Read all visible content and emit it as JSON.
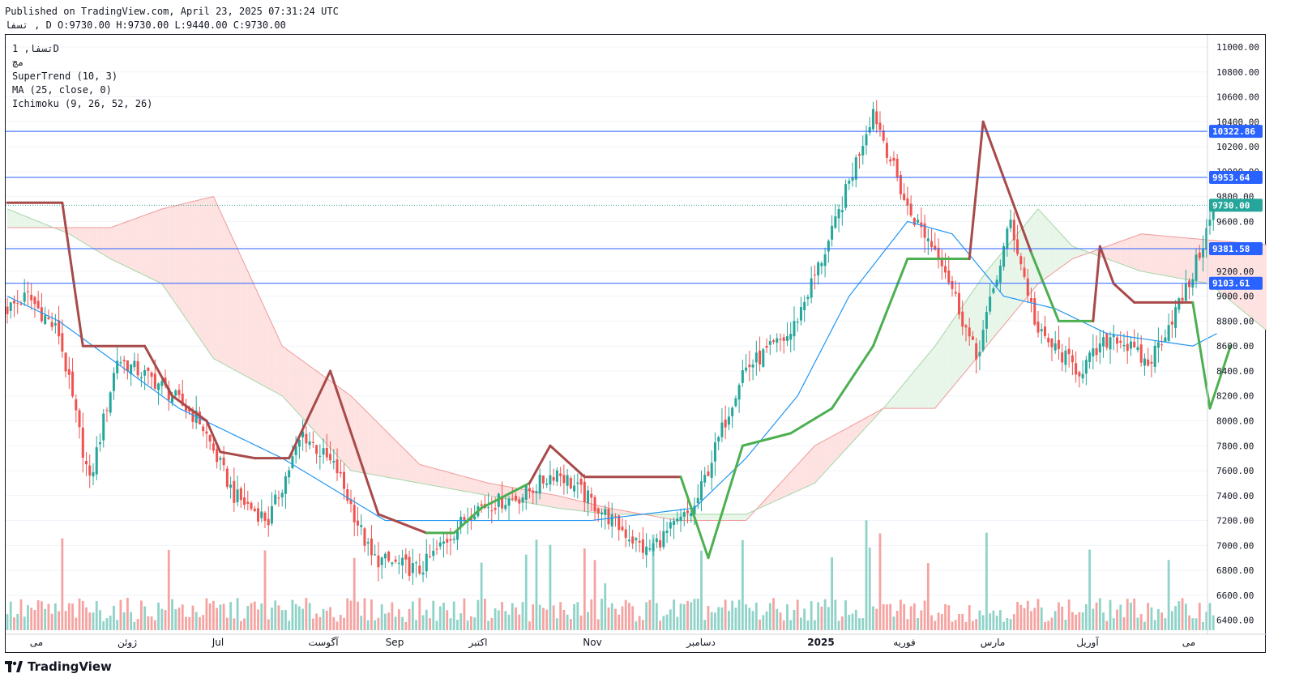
{
  "header": {
    "published": "Published on TradingView.com, April 23, 2025 07:31:24 UTC",
    "ohlc": "تسفا , D O:9730.00 H:9730.00 L:9440.00 C:9730.00"
  },
  "legend": {
    "symbol": "تسفا, 1D",
    "exchange": "مچ",
    "ind1": "SuperTrend (10, 3)",
    "ind2": "MA (25, close, 0)",
    "ind3": "Ichimoku (9, 26, 52, 26)"
  },
  "brand": {
    "name": "TradingView"
  },
  "colors": {
    "up": "#26a69a",
    "down": "#ef5350",
    "upVol": "#8fd3c8",
    "downVol": "#f5a3a1",
    "stUp": "#4caf50",
    "stDown": "#a84a4a",
    "ma": "#2196f3",
    "hline": "#2962ff",
    "cloudUp": "#e8f5e9",
    "cloudDown": "#fde2e1"
  },
  "chart_data": {
    "type": "candlestick",
    "ylim": [
      6300,
      11000
    ],
    "yticks": [
      6400,
      6600,
      6800,
      7000,
      7200,
      7400,
      7600,
      7800,
      8000,
      8200,
      8400,
      8600,
      8800,
      9000,
      9200,
      9400,
      9600,
      9800,
      10000,
      10200,
      10400,
      10600,
      10800,
      11000
    ],
    "x_labels": [
      "می",
      "ژوئن",
      "Jul",
      "آگوست",
      "Sep",
      "اکتبر",
      "Nov",
      "دسامبر",
      "2025",
      "فوریه",
      "مارس",
      "آوریل",
      "می"
    ],
    "horizontal_lines": [
      10322.86,
      9953.64,
      9381.58,
      9103.61
    ],
    "last_price": 9730.0,
    "price_labels": [
      "10322.86",
      "9953.64",
      "9381.58",
      "9103.61",
      "9730.00"
    ],
    "anchors": {
      "close": [
        [
          0,
          8900
        ],
        [
          6,
          9000
        ],
        [
          15,
          8700
        ],
        [
          24,
          7500
        ],
        [
          32,
          8500
        ],
        [
          44,
          8300
        ],
        [
          56,
          8000
        ],
        [
          66,
          7400
        ],
        [
          76,
          7200
        ],
        [
          86,
          7900
        ],
        [
          96,
          7600
        ],
        [
          106,
          6900
        ],
        [
          120,
          6800
        ],
        [
          136,
          7300
        ],
        [
          150,
          7400
        ],
        [
          160,
          7600
        ],
        [
          172,
          7300
        ],
        [
          186,
          6950
        ],
        [
          200,
          7300
        ],
        [
          214,
          8400
        ],
        [
          228,
          8700
        ],
        [
          240,
          9500
        ],
        [
          252,
          10500
        ],
        [
          262,
          9700
        ],
        [
          272,
          9300
        ],
        [
          282,
          8500
        ],
        [
          292,
          9600
        ],
        [
          300,
          8700
        ],
        [
          312,
          8400
        ],
        [
          322,
          8700
        ],
        [
          332,
          8450
        ],
        [
          344,
          9100
        ],
        [
          350,
          9600
        ],
        [
          351,
          9730
        ]
      ],
      "ma": [
        [
          0,
          9000
        ],
        [
          15,
          8800
        ],
        [
          30,
          8500
        ],
        [
          50,
          8100
        ],
        [
          80,
          7700
        ],
        [
          110,
          7200
        ],
        [
          140,
          7200
        ],
        [
          170,
          7200
        ],
        [
          200,
          7300
        ],
        [
          215,
          7700
        ],
        [
          230,
          8200
        ],
        [
          245,
          9000
        ],
        [
          262,
          9600
        ],
        [
          275,
          9500
        ],
        [
          290,
          9000
        ],
        [
          305,
          8900
        ],
        [
          320,
          8700
        ],
        [
          345,
          8600
        ],
        [
          352,
          8700
        ]
      ],
      "spanA": [
        [
          0,
          9700
        ],
        [
          18,
          9500
        ],
        [
          30,
          9300
        ],
        [
          45,
          9100
        ],
        [
          60,
          8500
        ],
        [
          80,
          8200
        ],
        [
          100,
          7600
        ],
        [
          120,
          7500
        ],
        [
          140,
          7400
        ],
        [
          160,
          7300
        ],
        [
          175,
          7250
        ],
        [
          195,
          7250
        ],
        [
          215,
          7250
        ],
        [
          235,
          7500
        ],
        [
          255,
          8100
        ],
        [
          270,
          8600
        ],
        [
          285,
          9200
        ],
        [
          300,
          9700
        ],
        [
          310,
          9400
        ],
        [
          330,
          9200
        ],
        [
          350,
          9100
        ],
        [
          372,
          8600
        ]
      ],
      "spanB": [
        [
          0,
          9550
        ],
        [
          18,
          9550
        ],
        [
          30,
          9550
        ],
        [
          45,
          9700
        ],
        [
          60,
          9800
        ],
        [
          80,
          8600
        ],
        [
          100,
          8200
        ],
        [
          120,
          7650
        ],
        [
          140,
          7500
        ],
        [
          160,
          7400
        ],
        [
          175,
          7300
        ],
        [
          195,
          7200
        ],
        [
          215,
          7200
        ],
        [
          235,
          7800
        ],
        [
          255,
          8100
        ],
        [
          270,
          8100
        ],
        [
          285,
          8600
        ],
        [
          300,
          9100
        ],
        [
          310,
          9300
        ],
        [
          330,
          9500
        ],
        [
          350,
          9450
        ],
        [
          372,
          9400
        ]
      ],
      "supertrend": [
        [
          0,
          9750,
          "d"
        ],
        [
          16,
          9750,
          "d"
        ],
        [
          22,
          8600,
          "d"
        ],
        [
          40,
          8600,
          "d"
        ],
        [
          48,
          8200,
          "d"
        ],
        [
          58,
          8000,
          "d"
        ],
        [
          62,
          7750,
          "d"
        ],
        [
          72,
          7700,
          "d"
        ],
        [
          82,
          7700,
          "d"
        ],
        [
          94,
          8400,
          "d"
        ],
        [
          108,
          7250,
          "d"
        ],
        [
          122,
          7100,
          "d"
        ],
        [
          130,
          7100,
          "u"
        ],
        [
          138,
          7300,
          "u"
        ],
        [
          152,
          7500,
          "u"
        ],
        [
          158,
          7800,
          "d"
        ],
        [
          168,
          7550,
          "d"
        ],
        [
          196,
          7550,
          "d"
        ],
        [
          204,
          6900,
          "u"
        ],
        [
          214,
          7800,
          "u"
        ],
        [
          228,
          7900,
          "u"
        ],
        [
          240,
          8100,
          "u"
        ],
        [
          252,
          8600,
          "u"
        ],
        [
          262,
          9300,
          "u"
        ],
        [
          280,
          9300,
          "u"
        ],
        [
          284,
          10400,
          "d"
        ],
        [
          298,
          9350,
          "d"
        ],
        [
          306,
          8800,
          "u"
        ],
        [
          316,
          8800,
          "u"
        ],
        [
          318,
          9400,
          "d"
        ],
        [
          322,
          9100,
          "d"
        ],
        [
          328,
          8950,
          "d"
        ],
        [
          345,
          8950,
          "d"
        ],
        [
          350,
          8100,
          "u"
        ],
        [
          356,
          8600,
          "u"
        ]
      ]
    }
  }
}
